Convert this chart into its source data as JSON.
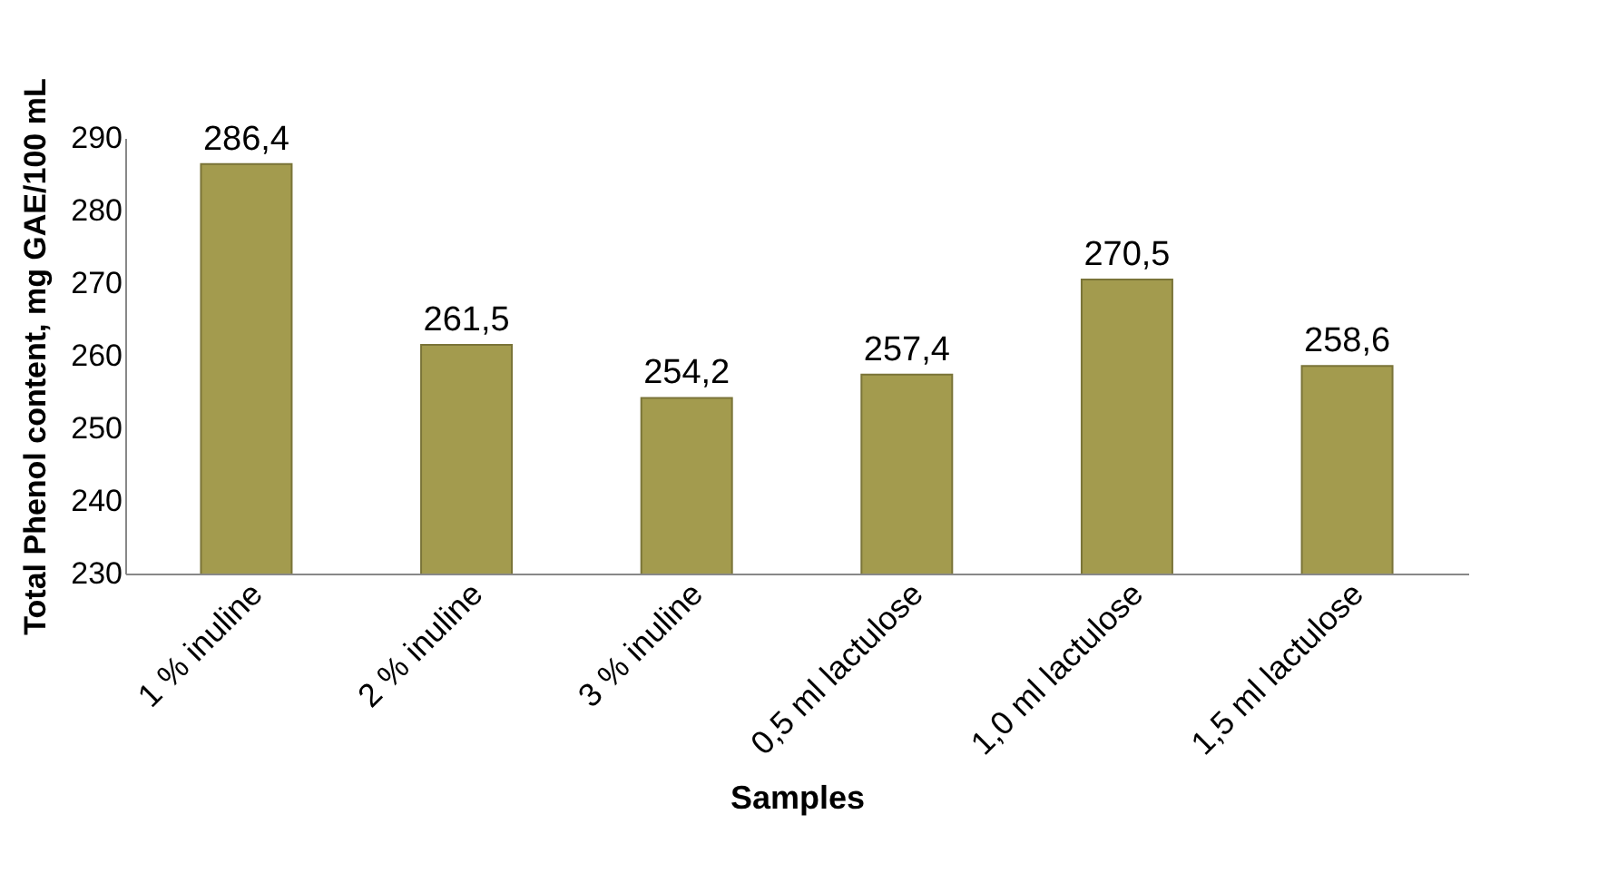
{
  "chart_data": {
    "type": "bar",
    "xlabel": "Samples",
    "ylabel": "Total Phenol content,  mg GAE/100 mL",
    "categories": [
      "1 % inuline",
      "2 % inuline",
      "3 % inuline",
      "0,5 ml lactulose",
      "1,0 ml lactulose",
      "1,5 ml lactulose"
    ],
    "values": [
      286.4,
      261.5,
      254.2,
      257.4,
      270.5,
      258.6
    ],
    "value_labels": [
      "286,4",
      "261,5",
      "254,2",
      "257,4",
      "270,5",
      "258,6"
    ],
    "color": "#a39b4e",
    "ylim": [
      230,
      290
    ],
    "yticks": [
      230,
      240,
      250,
      260,
      270,
      280,
      290
    ]
  }
}
